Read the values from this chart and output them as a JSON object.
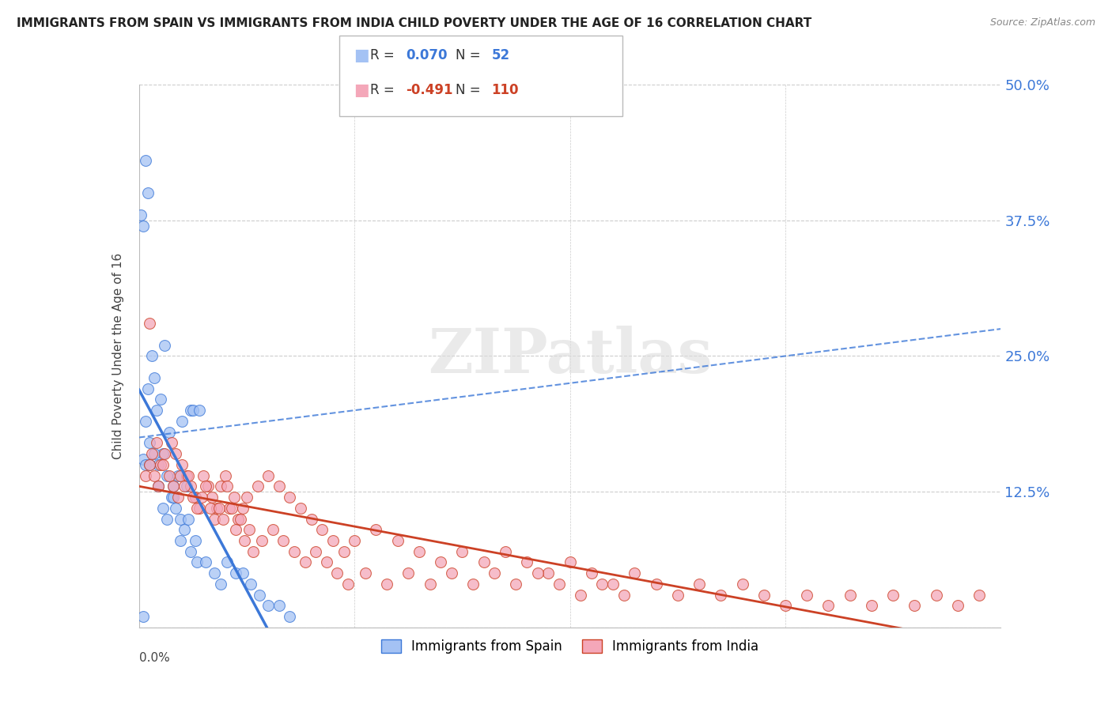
{
  "title": "IMMIGRANTS FROM SPAIN VS IMMIGRANTS FROM INDIA CHILD POVERTY UNDER THE AGE OF 16 CORRELATION CHART",
  "source": "Source: ZipAtlas.com",
  "ylabel": "Child Poverty Under the Age of 16",
  "yticks": [
    0.0,
    0.125,
    0.25,
    0.375,
    0.5
  ],
  "ytick_labels": [
    "",
    "12.5%",
    "25.0%",
    "37.5%",
    "50.0%"
  ],
  "xmin": 0.0,
  "xmax": 0.4,
  "ymin": 0.0,
  "ymax": 0.5,
  "spain_R": 0.07,
  "spain_N": 52,
  "india_R": -0.491,
  "india_N": 110,
  "legend_labels": [
    "Immigrants from Spain",
    "Immigrants from India"
  ],
  "color_spain": "#a4c2f4",
  "color_india": "#f4a7b9",
  "trend_color_spain": "#3c78d8",
  "trend_color_india": "#cc4125",
  "watermark": "ZIPatlas",
  "spain_x": [
    0.002,
    0.003,
    0.004,
    0.005,
    0.006,
    0.007,
    0.008,
    0.009,
    0.01,
    0.011,
    0.012,
    0.013,
    0.014,
    0.015,
    0.016,
    0.017,
    0.018,
    0.019,
    0.02,
    0.021,
    0.022,
    0.023,
    0.024,
    0.025,
    0.026,
    0.027,
    0.028,
    0.003,
    0.005,
    0.007,
    0.009,
    0.011,
    0.013,
    0.016,
    0.019,
    0.024,
    0.031,
    0.035,
    0.038,
    0.041,
    0.045,
    0.048,
    0.052,
    0.056,
    0.06,
    0.065,
    0.07,
    0.001,
    0.002,
    0.003,
    0.004,
    0.002
  ],
  "spain_y": [
    0.155,
    0.19,
    0.22,
    0.17,
    0.25,
    0.23,
    0.2,
    0.15,
    0.21,
    0.16,
    0.26,
    0.14,
    0.18,
    0.12,
    0.13,
    0.11,
    0.14,
    0.1,
    0.19,
    0.09,
    0.13,
    0.1,
    0.2,
    0.2,
    0.08,
    0.06,
    0.2,
    0.15,
    0.15,
    0.16,
    0.13,
    0.11,
    0.1,
    0.12,
    0.08,
    0.07,
    0.06,
    0.05,
    0.04,
    0.06,
    0.05,
    0.05,
    0.04,
    0.03,
    0.02,
    0.02,
    0.01,
    0.38,
    0.37,
    0.43,
    0.4,
    0.01
  ],
  "india_x": [
    0.003,
    0.005,
    0.006,
    0.008,
    0.01,
    0.012,
    0.014,
    0.016,
    0.018,
    0.02,
    0.022,
    0.024,
    0.026,
    0.028,
    0.03,
    0.032,
    0.034,
    0.036,
    0.038,
    0.04,
    0.042,
    0.044,
    0.046,
    0.048,
    0.05,
    0.055,
    0.06,
    0.065,
    0.07,
    0.075,
    0.08,
    0.085,
    0.09,
    0.095,
    0.1,
    0.11,
    0.12,
    0.13,
    0.14,
    0.15,
    0.16,
    0.17,
    0.18,
    0.19,
    0.2,
    0.21,
    0.22,
    0.23,
    0.24,
    0.25,
    0.26,
    0.27,
    0.28,
    0.29,
    0.3,
    0.31,
    0.32,
    0.33,
    0.34,
    0.35,
    0.36,
    0.37,
    0.38,
    0.39,
    0.005,
    0.007,
    0.009,
    0.011,
    0.015,
    0.017,
    0.019,
    0.021,
    0.023,
    0.025,
    0.027,
    0.029,
    0.031,
    0.033,
    0.035,
    0.037,
    0.039,
    0.041,
    0.043,
    0.045,
    0.047,
    0.049,
    0.051,
    0.053,
    0.057,
    0.062,
    0.067,
    0.072,
    0.077,
    0.082,
    0.087,
    0.092,
    0.097,
    0.105,
    0.115,
    0.125,
    0.135,
    0.145,
    0.155,
    0.165,
    0.175,
    0.185,
    0.195,
    0.205,
    0.215,
    0.225
  ],
  "india_y": [
    0.14,
    0.15,
    0.16,
    0.17,
    0.15,
    0.16,
    0.14,
    0.13,
    0.12,
    0.15,
    0.14,
    0.13,
    0.12,
    0.11,
    0.14,
    0.13,
    0.12,
    0.11,
    0.13,
    0.14,
    0.11,
    0.12,
    0.1,
    0.11,
    0.12,
    0.13,
    0.14,
    0.13,
    0.12,
    0.11,
    0.1,
    0.09,
    0.08,
    0.07,
    0.08,
    0.09,
    0.08,
    0.07,
    0.06,
    0.07,
    0.06,
    0.07,
    0.06,
    0.05,
    0.06,
    0.05,
    0.04,
    0.05,
    0.04,
    0.03,
    0.04,
    0.03,
    0.04,
    0.03,
    0.02,
    0.03,
    0.02,
    0.03,
    0.02,
    0.03,
    0.02,
    0.03,
    0.02,
    0.03,
    0.28,
    0.14,
    0.13,
    0.15,
    0.17,
    0.16,
    0.14,
    0.13,
    0.14,
    0.12,
    0.11,
    0.12,
    0.13,
    0.11,
    0.1,
    0.11,
    0.1,
    0.13,
    0.11,
    0.09,
    0.1,
    0.08,
    0.09,
    0.07,
    0.08,
    0.09,
    0.08,
    0.07,
    0.06,
    0.07,
    0.06,
    0.05,
    0.04,
    0.05,
    0.04,
    0.05,
    0.04,
    0.05,
    0.04,
    0.05,
    0.04,
    0.05,
    0.04,
    0.03,
    0.04,
    0.03
  ],
  "background_color": "#ffffff",
  "grid_color": "#cccccc",
  "title_color": "#222222",
  "right_ytick_color": "#3c78d8"
}
